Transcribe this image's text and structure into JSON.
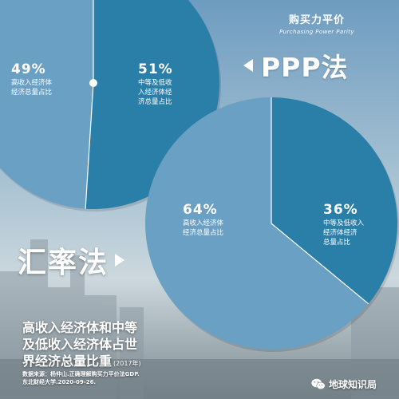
{
  "colors": {
    "light": "#6aa0c4",
    "dark": "#2a7fa8",
    "divider": "#ffffff",
    "text": "#ffffff"
  },
  "ppp": {
    "title_cn": "购买力平价",
    "title_en": "Purchasing Power Parity",
    "method_label": "PPP法"
  },
  "fx": {
    "method_label": "汇率法"
  },
  "chart_data": [
    {
      "type": "pie",
      "method": "PPP法",
      "slices": [
        {
          "percent_label": "49%",
          "value": 49,
          "label_lines": [
            "高收入经济体",
            "经济总量占比"
          ],
          "color": "#6aa0c4"
        },
        {
          "percent_label": "51%",
          "value": 51,
          "label_lines": [
            "中等及低收",
            "入经济体经",
            "济总量占比"
          ],
          "color": "#2a7fa8"
        }
      ]
    },
    {
      "type": "pie",
      "method": "汇率法",
      "slices": [
        {
          "percent_label": "64%",
          "value": 64,
          "label_lines": [
            "高收入经济体",
            "经济总量占比"
          ],
          "color": "#6aa0c4"
        },
        {
          "percent_label": "36%",
          "value": 36,
          "label_lines": [
            "中等及低收入",
            "经济体经济",
            "总量占比"
          ],
          "color": "#2a7fa8"
        }
      ]
    }
  ],
  "main_title": {
    "line1": "高收入经济体和中等",
    "line2": "及低收入经济体占世",
    "line3": "界经济总量比重",
    "year": "(2017年)"
  },
  "source": {
    "line1": "数据来源：杨仲山.正确理解购买力平价法GDP.",
    "line2": "东北财经大学.2020-09-26."
  },
  "brand": {
    "name": "地球知识局",
    "icon": "wechat-icon"
  }
}
